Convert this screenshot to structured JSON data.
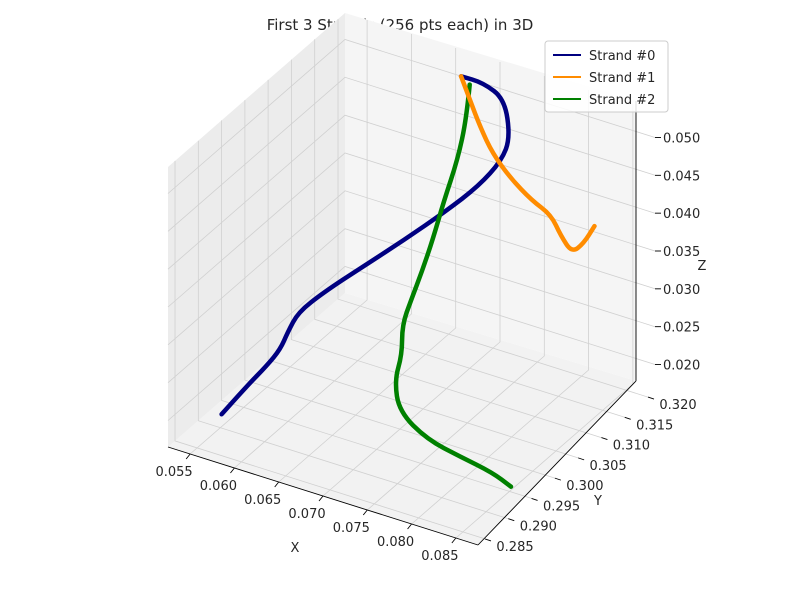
{
  "chart_data": {
    "type": "line",
    "projection": "3d",
    "title": "First 3 Strands (256 pts each) in 3D",
    "xlabel": "X",
    "ylabel": "Y",
    "zlabel": "Z",
    "x_ticks": [
      "0.055",
      "0.060",
      "0.065",
      "0.070",
      "0.075",
      "0.080",
      "0.085"
    ],
    "y_ticks": [
      "0.285",
      "0.290",
      "0.295",
      "0.300",
      "0.305",
      "0.310",
      "0.315",
      "0.320"
    ],
    "z_ticks": [
      "0.020",
      "0.025",
      "0.030",
      "0.035",
      "0.040",
      "0.045",
      "0.050"
    ],
    "grid": true,
    "legend_position": "top-right",
    "series": [
      {
        "name": "Strand #0",
        "color": "#000080",
        "points": [
          [
            0.0575,
            0.2855,
            0.0216
          ],
          [
            0.059,
            0.288,
            0.0245
          ],
          [
            0.0605,
            0.2895,
            0.027
          ],
          [
            0.0615,
            0.2905,
            0.029
          ],
          [
            0.0618,
            0.2915,
            0.0308
          ],
          [
            0.0622,
            0.293,
            0.0328
          ],
          [
            0.064,
            0.295,
            0.035
          ],
          [
            0.0668,
            0.298,
            0.0378
          ],
          [
            0.07,
            0.301,
            0.041
          ],
          [
            0.073,
            0.304,
            0.0442
          ],
          [
            0.0755,
            0.3065,
            0.0472
          ],
          [
            0.077,
            0.3085,
            0.05
          ],
          [
            0.0772,
            0.31,
            0.0523
          ],
          [
            0.075,
            0.313,
            0.055
          ],
          [
            0.0715,
            0.315,
            0.0548
          ],
          [
            0.0685,
            0.316,
            0.054
          ]
        ]
      },
      {
        "name": "Strand #1",
        "color": "#ff8c00",
        "points": [
          [
            0.0685,
            0.316,
            0.054
          ],
          [
            0.0698,
            0.3155,
            0.0515
          ],
          [
            0.0712,
            0.315,
            0.0488
          ],
          [
            0.0727,
            0.3148,
            0.046
          ],
          [
            0.0745,
            0.3152,
            0.0432
          ],
          [
            0.0762,
            0.3165,
            0.0402
          ],
          [
            0.0776,
            0.318,
            0.038
          ],
          [
            0.0786,
            0.3182,
            0.0355
          ],
          [
            0.0797,
            0.3185,
            0.0335
          ],
          [
            0.0805,
            0.3195,
            0.0345
          ],
          [
            0.0812,
            0.3205,
            0.0365
          ]
        ]
      },
      {
        "name": "Strand #2",
        "color": "#008000",
        "points": [
          [
            0.07,
            0.315,
            0.054
          ],
          [
            0.0712,
            0.312,
            0.0515
          ],
          [
            0.0718,
            0.309,
            0.048
          ],
          [
            0.0718,
            0.306,
            0.044
          ],
          [
            0.0716,
            0.304,
            0.04
          ],
          [
            0.0712,
            0.3025,
            0.0365
          ],
          [
            0.0705,
            0.3015,
            0.033
          ],
          [
            0.07,
            0.3005,
            0.03
          ],
          [
            0.0705,
            0.2995,
            0.0268
          ],
          [
            0.0702,
            0.2985,
            0.0238
          ],
          [
            0.0715,
            0.297,
            0.021
          ],
          [
            0.0752,
            0.296,
            0.0192
          ],
          [
            0.079,
            0.296,
            0.0183
          ],
          [
            0.082,
            0.297,
            0.0168
          ],
          [
            0.0836,
            0.298,
            0.015
          ]
        ]
      }
    ]
  }
}
